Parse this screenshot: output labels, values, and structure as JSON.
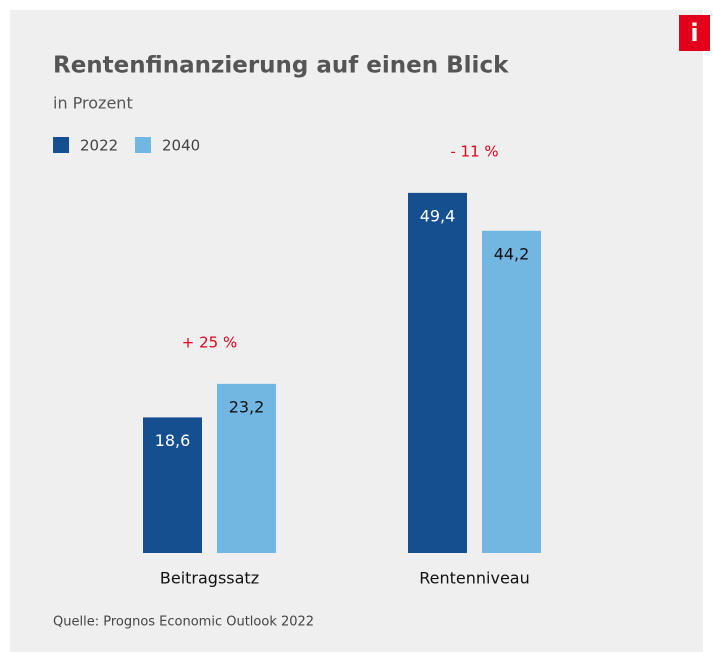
{
  "chart_data": {
    "type": "bar",
    "title": "Rentenfinanzierung auf einen Blick",
    "subtitle": "in Prozent",
    "categories": [
      "Beitragssatz",
      "Rentenniveau"
    ],
    "series": [
      {
        "name": "2022",
        "color": "#164f8f",
        "values": [
          18.6,
          49.4
        ],
        "value_labels": [
          "18,6",
          "49,4"
        ]
      },
      {
        "name": "2040",
        "color": "#72b6e2",
        "values": [
          23.2,
          44.2
        ],
        "value_labels": [
          "23,2",
          "44,2"
        ]
      }
    ],
    "annotations": [
      "+ 25 %",
      "- 11 %"
    ],
    "source": "Quelle: Prognos Economic Outlook 2022",
    "badge": "i"
  }
}
